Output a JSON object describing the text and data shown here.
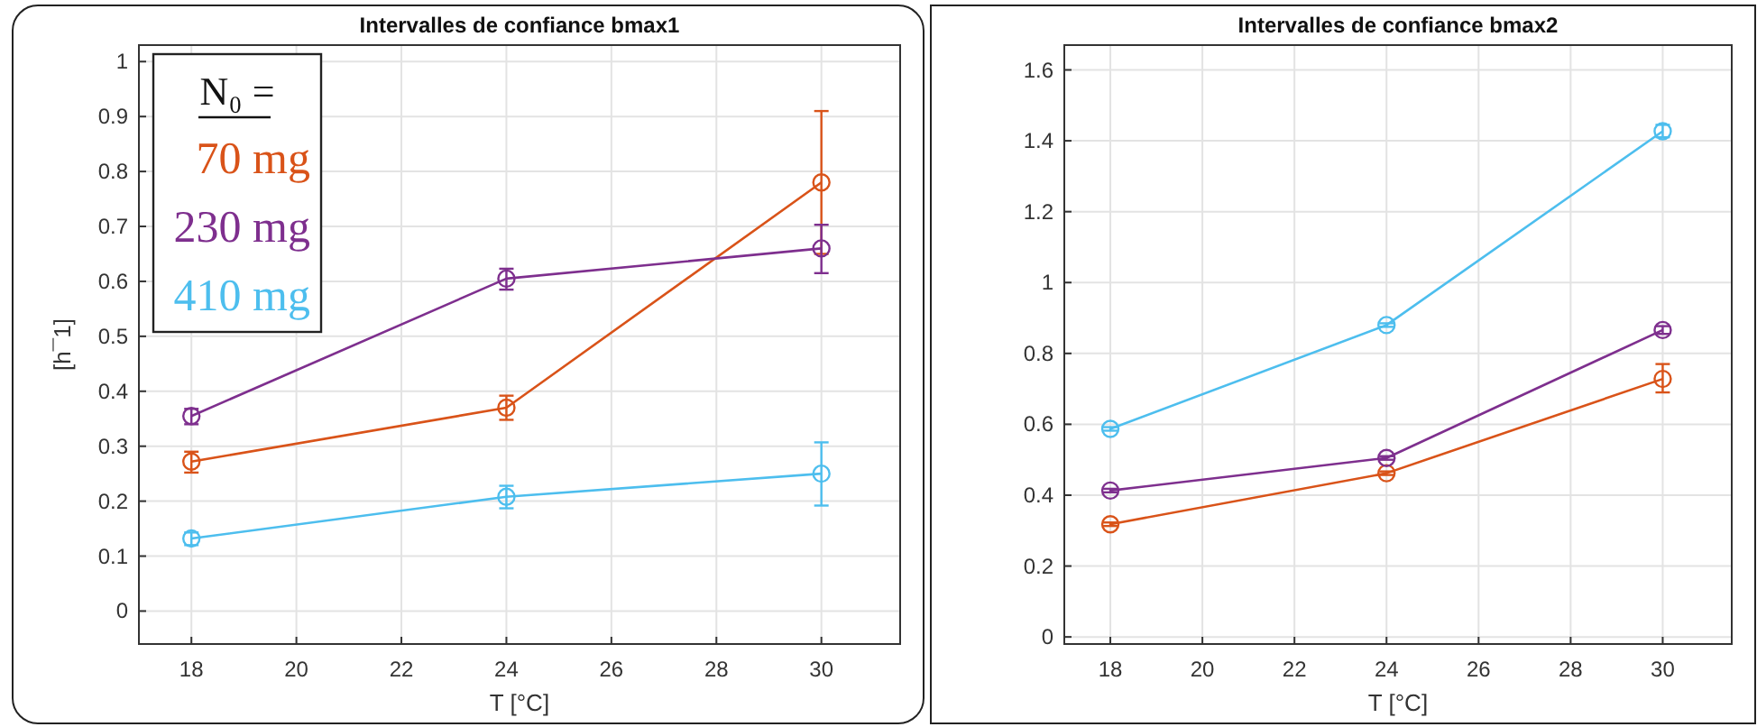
{
  "chart_data": [
    {
      "type": "line",
      "title": "Intervalles de confiance bmax1",
      "xlabel": "T [°C]",
      "ylabel": "[h¯1]",
      "legend_title": "N₀ =",
      "legend": "top left",
      "grid": true,
      "marker": "circle",
      "x": [
        18,
        24,
        30
      ],
      "xlim": [
        17,
        31.5
      ],
      "xticks": [
        18,
        20,
        22,
        24,
        26,
        28,
        30
      ],
      "ylim": [
        -0.06,
        1.03
      ],
      "yticks": [
        0,
        0.1,
        0.2,
        0.3,
        0.4,
        0.5,
        0.6,
        0.7,
        0.8,
        0.9,
        1
      ],
      "series": [
        {
          "name": "70 mg",
          "color": "#d95319",
          "values": [
            0.272,
            0.37,
            0.78
          ],
          "errors": [
            [
              0.252,
              0.29
            ],
            [
              0.348,
              0.392
            ],
            [
              0.65,
              0.91
            ]
          ]
        },
        {
          "name": "230 mg",
          "color": "#7e2f8e",
          "values": [
            0.355,
            0.605,
            0.66
          ],
          "errors": [
            [
              0.34,
              0.368
            ],
            [
              0.585,
              0.623
            ],
            [
              0.615,
              0.703
            ]
          ]
        },
        {
          "name": "410 mg",
          "color": "#4dbeee",
          "values": [
            0.132,
            0.208,
            0.25
          ],
          "errors": [
            [
              0.12,
              0.143
            ],
            [
              0.187,
              0.228
            ],
            [
              0.192,
              0.307
            ]
          ]
        }
      ]
    },
    {
      "type": "line",
      "title": "Intervalles de confiance bmax2",
      "xlabel": "T [°C]",
      "grid": true,
      "marker": "circle",
      "x": [
        18,
        24,
        30
      ],
      "xlim": [
        17,
        31.5
      ],
      "xticks": [
        18,
        20,
        22,
        24,
        26,
        28,
        30
      ],
      "ylim": [
        -0.02,
        1.67
      ],
      "yticks": [
        0,
        0.2,
        0.4,
        0.6,
        0.8,
        1,
        1.2,
        1.4,
        1.6
      ],
      "series": [
        {
          "color": "#d95319",
          "values": [
            0.318,
            0.462,
            0.728
          ],
          "errors": [
            0.005,
            0.005,
            [
              0.69,
              0.77
            ]
          ]
        },
        {
          "color": "#7e2f8e",
          "values": [
            0.413,
            0.505,
            0.866
          ],
          "errors": [
            0.005,
            0.005,
            [
              0.855,
              0.877
            ]
          ]
        },
        {
          "color": "#4dbeee",
          "values": [
            0.587,
            0.88,
            1.427
          ],
          "errors": [
            0.005,
            0.005,
            [
              1.41,
              1.445
            ]
          ]
        }
      ]
    }
  ]
}
